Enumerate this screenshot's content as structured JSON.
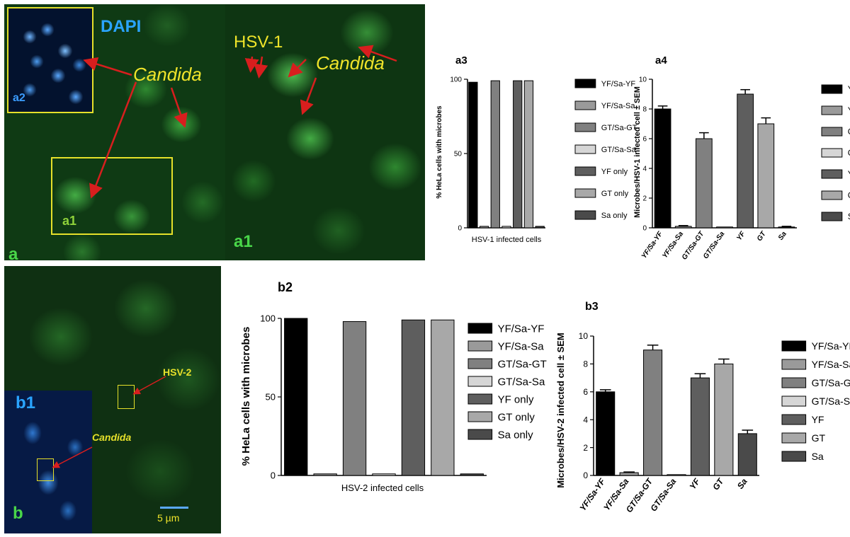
{
  "panel_a": {
    "label": "a",
    "inset_a2_label": "a2",
    "dapi_label": "DAPI",
    "candida_label": "Candida",
    "box_a1_label": "a1",
    "zoom_a1_label": "a1",
    "hsv1_label": "HSV-1",
    "candida_label_zoom": "Candida"
  },
  "panel_b": {
    "label": "b",
    "inset_b1_label": "b1",
    "hsv2_label": "HSV-2",
    "candida_label": "Candida",
    "scale_bar": "5 µm"
  },
  "colors": {
    "microscope_green": "#2f9a2f",
    "dapi_blue": "#1f6ed8",
    "annotation_red": "#d81e1e",
    "label_yellow": "#f0e42a"
  },
  "chart_data": [
    {
      "id": "a3",
      "type": "bar",
      "panel_label": "a3",
      "ylabel": "% HeLa cells with microbes",
      "xlabel": "HSV-1 infected cells",
      "ylim": [
        0,
        100
      ],
      "yticks": [
        "0",
        "50",
        "100"
      ],
      "series": [
        {
          "name": "YF/Sa-YF",
          "value": 98,
          "color": "#000000"
        },
        {
          "name": "YF/Sa-Sa",
          "value": 1,
          "color": "#9a9a9a"
        },
        {
          "name": "GT/Sa-GT",
          "value": 99,
          "color": "#808080"
        },
        {
          "name": "GT/Sa-Sa",
          "value": 1,
          "color": "#d6d6d6"
        },
        {
          "name": "YF only",
          "value": 99,
          "color": "#5e5e5e"
        },
        {
          "name": "GT only",
          "value": 99,
          "color": "#a8a8a8"
        },
        {
          "name": "Sa only",
          "value": 1,
          "color": "#4a4a4a"
        }
      ]
    },
    {
      "id": "a4",
      "type": "bar",
      "panel_label": "a4",
      "ylabel": "Microbes/HSV-1 infected cell ± SEM",
      "ylim": [
        0,
        10
      ],
      "yticks": [
        "0",
        "2",
        "4",
        "6",
        "8",
        "10"
      ],
      "categories": [
        "YF/Sa-YF",
        "YF/Sa-Sa",
        "GT/Sa-GT",
        "GT/Sa-Sa",
        "YF",
        "GT",
        "Sa"
      ],
      "values": [
        8,
        0.1,
        6,
        0,
        9,
        7,
        0.05
      ],
      "errors": [
        0.2,
        0.05,
        0.4,
        0,
        0.3,
        0.4,
        0.05
      ],
      "colors": [
        "#000000",
        "#9a9a9a",
        "#808080",
        "#d6d6d6",
        "#5e5e5e",
        "#a8a8a8",
        "#4a4a4a"
      ],
      "legend": [
        "YF/Sa-YF",
        "YF/Sa-Sa",
        "GT/Sa-GT",
        "GT/Sa-Sa",
        "YF",
        "GT",
        "Sa"
      ]
    },
    {
      "id": "b2",
      "type": "bar",
      "panel_label": "b2",
      "ylabel": "% HeLa cells with microbes",
      "xlabel": "HSV-2 infected cells",
      "ylim": [
        0,
        100
      ],
      "yticks": [
        "0",
        "50",
        "100"
      ],
      "series": [
        {
          "name": "YF/Sa-YF",
          "value": 100,
          "color": "#000000"
        },
        {
          "name": "YF/Sa-Sa",
          "value": 1,
          "color": "#9a9a9a"
        },
        {
          "name": "GT/Sa-GT",
          "value": 98,
          "color": "#808080"
        },
        {
          "name": "GT/Sa-Sa",
          "value": 1,
          "color": "#d6d6d6"
        },
        {
          "name": "YF only",
          "value": 99,
          "color": "#5e5e5e"
        },
        {
          "name": "GT only",
          "value": 99,
          "color": "#a8a8a8"
        },
        {
          "name": "Sa only",
          "value": 1,
          "color": "#4a4a4a"
        }
      ]
    },
    {
      "id": "b3",
      "type": "bar",
      "panel_label": "b3",
      "ylabel": "Microbes/HSV-2 infected cell ± SEM",
      "ylim": [
        0,
        10
      ],
      "yticks": [
        "0",
        "2",
        "4",
        "6",
        "8",
        "10"
      ],
      "categories": [
        "YF/Sa-YF",
        "YF/Sa-Sa",
        "GT/Sa-GT",
        "GT/Sa-Sa",
        "YF",
        "GT",
        "Sa"
      ],
      "values": [
        6,
        0.2,
        9,
        0,
        7,
        8,
        3
      ],
      "errors": [
        0.15,
        0.05,
        0.35,
        0,
        0.3,
        0.35,
        0.25
      ],
      "colors": [
        "#000000",
        "#9a9a9a",
        "#808080",
        "#d6d6d6",
        "#5e5e5e",
        "#a8a8a8",
        "#4a4a4a"
      ],
      "legend": [
        "YF/Sa-YF",
        "YF/Sa-Sa",
        "GT/Sa-GT",
        "GT/Sa-Sa",
        "YF",
        "GT",
        "Sa"
      ]
    }
  ]
}
